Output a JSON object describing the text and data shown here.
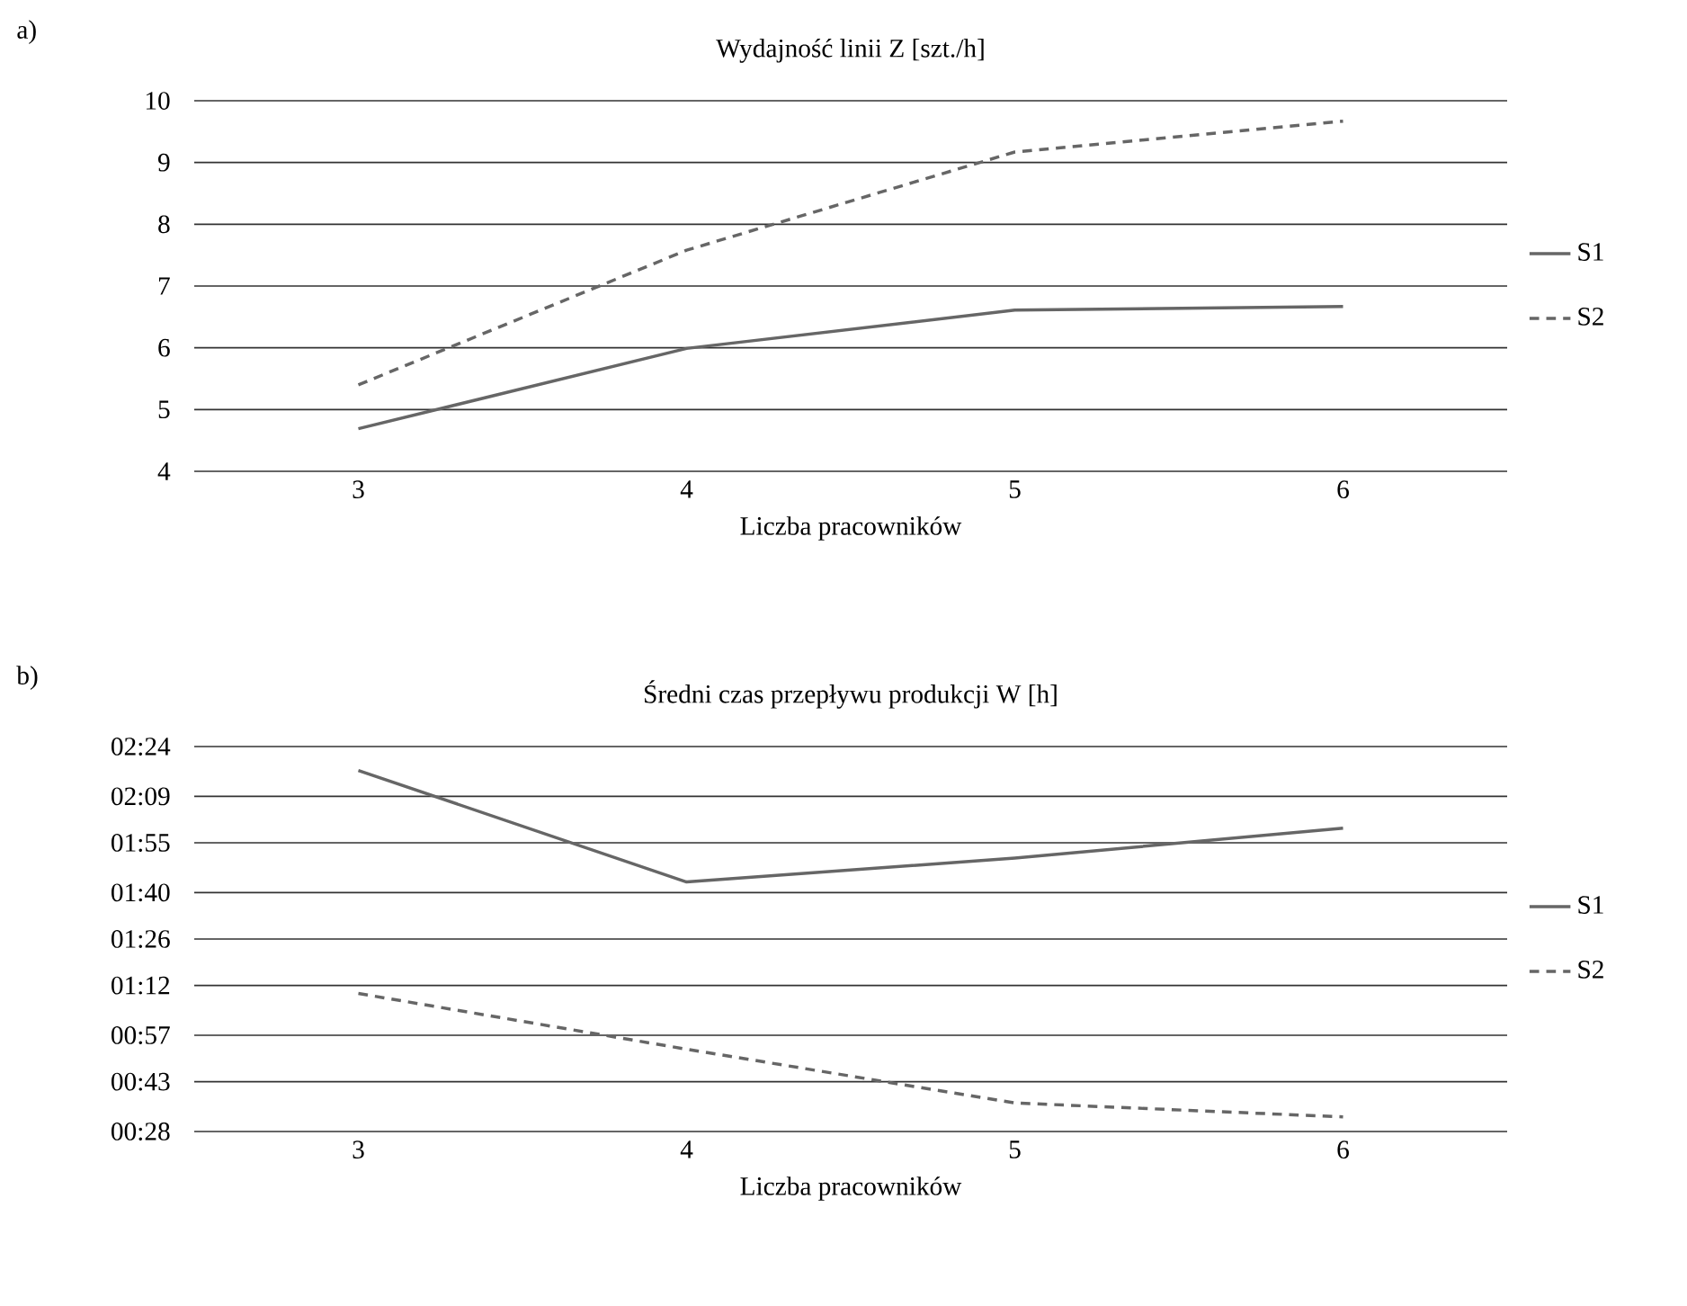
{
  "chart_data": [
    {
      "type": "line",
      "title": "Wydajność linii Z [szt./h]",
      "xlabel": "Liczba pracowników",
      "categories": [
        "3",
        "4",
        "5",
        "6"
      ],
      "series": [
        {
          "name": "S1",
          "color": "#666666",
          "line_style": "solid",
          "values": [
            4.69,
            5.99,
            6.61,
            6.67
          ]
        },
        {
          "name": "S2",
          "color": "#666666",
          "line_style": "dashed",
          "values": [
            5.4,
            7.58,
            9.17,
            9.67
          ]
        }
      ],
      "ylim": [
        4,
        10
      ],
      "yticks": [
        4,
        5,
        6,
        7,
        8,
        9,
        10
      ],
      "grid": "y",
      "legend": "right",
      "annotations": [
        "a)"
      ]
    },
    {
      "type": "line",
      "title": "Średni czas przepływu produkcji W [h]",
      "xlabel": "Liczba pracowników",
      "categories": [
        "3",
        "4",
        "5",
        "6"
      ],
      "series": [
        {
          "name": "S1",
          "color": "#666666",
          "line_style": "solid",
          "values": [
            2.28,
            1.72,
            1.84,
            1.99
          ]
        },
        {
          "name": "S2",
          "color": "#666666",
          "line_style": "dashed",
          "values": [
            1.16,
            0.88,
            0.61,
            0.54
          ]
        }
      ],
      "ylim": [
        0.4667,
        2.4
      ],
      "yticks": [
        {
          "value": 0.4667,
          "label": "00:28"
        },
        {
          "value": 0.7167,
          "label": "00:43"
        },
        {
          "value": 0.95,
          "label": "00:57"
        },
        {
          "value": 1.2,
          "label": "01:12"
        },
        {
          "value": 1.4333,
          "label": "01:26"
        },
        {
          "value": 1.6667,
          "label": "01:40"
        },
        {
          "value": 1.9167,
          "label": "01:55"
        },
        {
          "value": 2.15,
          "label": "02:09"
        },
        {
          "value": 2.4,
          "label": "02:24"
        }
      ],
      "grid": "y",
      "legend": "right",
      "annotations": [
        "b)"
      ]
    }
  ]
}
